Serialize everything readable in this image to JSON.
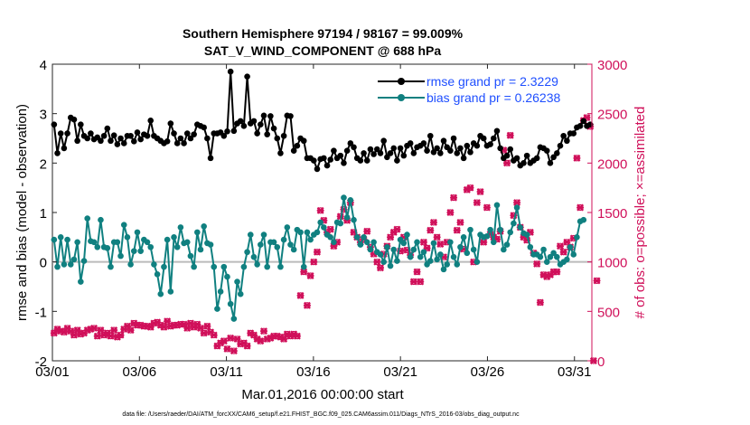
{
  "chart_data": {
    "type": "line",
    "title": "Southern Hemisphere 97194 / 98167 = 99.009%",
    "subtitle": "SAT_V_WIND_COMPONENT @ 688 hPa",
    "xlabel": "Mar.01,2016 00:00:00 start",
    "ylabel": "rmse and bias (model - observation)",
    "y2label": "# of obs: o=possible; ×=assimilated",
    "footnote": "data file: /Users/raeder/DAI/ATM_forcXX/CAM6_setup/f.e21.FHIST_BGC.f09_025.CAM6assim.011/Diags_NTrS_2016-03/obs_diag_output.nc",
    "x_ticks": [
      "03/01",
      "03/06",
      "03/11",
      "03/16",
      "03/21",
      "03/26",
      "03/31"
    ],
    "x_tick_positions": [
      1,
      6,
      11,
      16,
      21,
      26,
      31
    ],
    "xlim": [
      1,
      32
    ],
    "ylim": [
      -2,
      4
    ],
    "y_ticks": [
      "-2",
      "-1",
      "0",
      "1",
      "2",
      "3",
      "4"
    ],
    "y2lim": [
      0,
      3000
    ],
    "y2_ticks": [
      "0",
      "500",
      "1000",
      "1500",
      "2000",
      "2500",
      "3000"
    ],
    "legend": [
      "rmse grand pr = 2.3229",
      "bias grand pr = 0.26238"
    ],
    "legend_position": "top-right",
    "colors": {
      "rmse": "#000000",
      "bias": "#108080",
      "obs": "#d0105a",
      "legend_text": "#1f4fff",
      "zero_line": "#bbbbbb"
    },
    "series": [
      {
        "name": "rmse",
        "values": [
          2.78,
          2.2,
          2.6,
          2.3,
          2.6,
          2.92,
          2.88,
          2.45,
          2.78,
          2.55,
          2.5,
          2.6,
          2.48,
          2.52,
          2.45,
          2.55,
          2.7,
          2.45,
          2.56,
          2.38,
          2.5,
          2.4,
          2.55,
          2.55,
          2.44,
          2.62,
          2.48,
          2.58,
          2.55,
          2.86,
          2.55,
          2.5,
          2.45,
          2.4,
          2.44,
          2.8,
          2.6,
          2.4,
          2.5,
          2.4,
          2.6,
          2.5,
          2.58,
          2.78,
          2.75,
          2.72,
          2.5,
          2.1,
          2.6,
          2.6,
          2.62,
          2.55,
          2.64,
          3.85,
          2.65,
          2.8,
          2.85,
          2.75,
          3.75,
          2.8,
          2.85,
          2.6,
          2.78,
          2.96,
          2.58,
          2.95,
          2.7,
          2.5,
          2.2,
          2.55,
          2.96,
          2.95,
          2.25,
          2.35,
          2.5,
          2.45,
          2.1,
          2.1,
          2.05,
          1.88,
          2.08,
          2.1,
          1.95,
          2.07,
          2.25,
          2.1,
          2.15,
          2.0,
          2.25,
          2.4,
          2.32,
          2.1,
          2.05,
          2.2,
          2.05,
          2.28,
          2.18,
          2.28,
          2.2,
          2.45,
          2.12,
          2.2,
          2.3,
          2.05,
          2.3,
          2.15,
          2.35,
          2.4,
          2.2,
          2.32,
          2.35,
          2.4,
          2.25,
          2.55,
          2.22,
          2.3,
          2.2,
          2.45,
          2.32,
          2.25,
          2.5,
          2.2,
          2.3,
          2.1,
          2.35,
          2.22,
          2.4,
          2.35,
          2.55,
          2.5,
          2.35,
          2.38,
          2.5,
          2.65,
          2.3,
          2.1,
          2.15,
          2.28,
          2.05,
          2.1,
          1.95,
          2.0,
          2.15,
          2.0,
          2.05,
          2.1,
          2.32,
          2.3,
          2.25,
          2.0,
          2.12,
          2.2,
          2.35,
          2.55,
          2.45,
          2.6,
          2.6,
          2.72,
          2.75,
          2.85,
          2.75,
          2.78
        ]
      },
      {
        "name": "bias",
        "values": [
          0.45,
          -0.1,
          0.5,
          -0.05,
          0.45,
          -0.05,
          0.05,
          0.4,
          -0.4,
          0.02,
          0.88,
          0.42,
          0.4,
          0.3,
          0.85,
          0.3,
          0.28,
          -0.1,
          0.4,
          0.4,
          0.12,
          0.75,
          0.5,
          -0.05,
          0.22,
          0.6,
          0.22,
          0.45,
          0.4,
          0.3,
          -0.05,
          -0.25,
          -0.65,
          -0.1,
          0.45,
          -0.6,
          0.5,
          0.3,
          0.7,
          0.38,
          0.4,
          0.12,
          -0.1,
          0.6,
          0.25,
          0.72,
          0.38,
          0.35,
          -0.1,
          -0.95,
          -0.6,
          -0.1,
          -0.3,
          -0.85,
          -1.15,
          -0.4,
          -0.65,
          -0.1,
          0.2,
          0.55,
          0.1,
          -0.05,
          0.35,
          0.55,
          -0.1,
          0.4,
          0.4,
          0.3,
          -0.1,
          0.45,
          0.7,
          0.35,
          0.25,
          0.65,
          0.6,
          -0.1,
          0.6,
          0.45,
          0.55,
          0.6,
          0.8,
          0.7,
          0.55,
          0.5,
          0.4,
          0.8,
          0.78,
          1.3,
          0.9,
          1.25,
          0.85,
          0.5,
          0.35,
          0.5,
          0.4,
          0.25,
          0.4,
          0.2,
          0.15,
          0.0,
          0.3,
          -0.08,
          0.25,
          0.02,
          0.45,
          0.38,
          0.55,
          0.1,
          0.25,
          0.4,
          0.1,
          0.2,
          -0.05,
          0.02,
          0.38,
          0.05,
          0.15,
          -0.15,
          -0.05,
          0.4,
          0.1,
          -0.05,
          0.3,
          0.5,
          0.18,
          0.65,
          0.25,
          0.0,
          0.55,
          0.5,
          0.52,
          0.65,
          0.4,
          1.15,
          0.65,
          0.25,
          0.35,
          0.6,
          0.78,
          1.1,
          0.7,
          0.58,
          0.55,
          0.3,
          0.15,
          0.15,
          0.1,
          0.25,
          0.0,
          0.1,
          0.18,
          0.1,
          -0.05,
          0.0,
          0.05,
          0.3,
          0.15,
          0.5,
          0.82,
          0.85
        ]
      },
      {
        "name": "obs_possible",
        "values": [
          280,
          320,
          300,
          290,
          330,
          300,
          260,
          310,
          270,
          280,
          310,
          320,
          330,
          250,
          310,
          260,
          280,
          250,
          310,
          240,
          260,
          320,
          350,
          310,
          380,
          360,
          360,
          350,
          350,
          340,
          380,
          390,
          360,
          340,
          400,
          350,
          360,
          360,
          370,
          370,
          330,
          380,
          340,
          370,
          330,
          280,
          350,
          290,
          260,
          150,
          180,
          200,
          120,
          230,
          100,
          220,
          170,
          180,
          150,
          280,
          260,
          220,
          200,
          300,
          220,
          230,
          250,
          250,
          240,
          220,
          270,
          250,
          270,
          250,
          660,
          900,
          560,
          860,
          1000,
          1100,
          1520,
          1420,
          1300,
          1330,
          1160,
          1200,
          1460,
          1530,
          1420,
          1600,
          1300,
          1250,
          1200,
          1230,
          1310,
          1150,
          1080,
          1000,
          940,
          1080,
          1160,
          1250,
          1300,
          1330,
          1110,
          1250,
          1120,
          1070,
          800,
          900,
          800,
          1200,
          1140,
          1320,
          1400,
          1250,
          1180,
          1050,
          1200,
          1500,
          1650,
          1320,
          1400,
          1130,
          1730,
          1750,
          1000,
          1600,
          1710,
          1200,
          1550,
          1280,
          1250,
          1230,
          1310,
          2130,
          2000,
          2280,
          1470,
          1600,
          1350,
          1250,
          1220,
          1300,
          1090,
          980,
          590,
          870,
          850,
          870,
          900,
          900,
          1160,
          1100,
          1200,
          1150,
          1240,
          2050,
          1550,
          2430,
          2460,
          2370,
          0,
          810
        ]
      },
      {
        "name": "obs_assimilated",
        "values": [
          280,
          320,
          300,
          290,
          330,
          300,
          260,
          310,
          270,
          280,
          310,
          320,
          330,
          250,
          310,
          260,
          280,
          250,
          310,
          240,
          260,
          320,
          350,
          310,
          380,
          360,
          360,
          350,
          350,
          340,
          380,
          390,
          360,
          340,
          400,
          350,
          360,
          360,
          370,
          370,
          330,
          380,
          340,
          370,
          330,
          280,
          350,
          290,
          260,
          150,
          180,
          200,
          120,
          230,
          100,
          220,
          170,
          180,
          150,
          280,
          260,
          220,
          200,
          300,
          220,
          230,
          250,
          250,
          240,
          220,
          270,
          250,
          270,
          250,
          660,
          900,
          560,
          860,
          1000,
          1100,
          1520,
          1420,
          1300,
          1330,
          1160,
          1200,
          1460,
          1530,
          1420,
          1600,
          1300,
          1250,
          1200,
          1230,
          1310,
          1150,
          1080,
          1000,
          940,
          1080,
          1160,
          1250,
          1300,
          1330,
          1110,
          1250,
          1120,
          1070,
          800,
          900,
          800,
          1200,
          1140,
          1320,
          1400,
          1250,
          1180,
          1050,
          1200,
          1500,
          1650,
          1320,
          1400,
          1130,
          1730,
          1750,
          1000,
          1600,
          1710,
          1200,
          1550,
          1280,
          1250,
          1230,
          1310,
          2130,
          2000,
          2280,
          1470,
          1600,
          1350,
          1250,
          1220,
          1300,
          1090,
          980,
          590,
          870,
          850,
          870,
          900,
          900,
          1160,
          1100,
          1200,
          1150,
          1240,
          2050,
          1550,
          2430,
          2460,
          2370,
          0,
          810
        ]
      }
    ]
  }
}
